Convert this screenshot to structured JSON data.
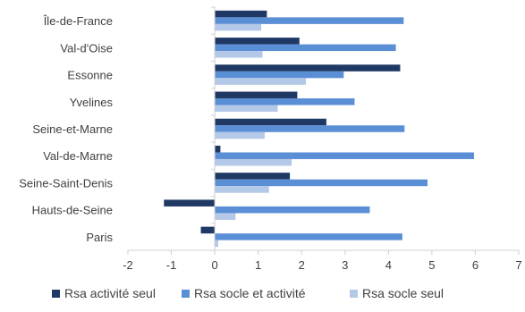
{
  "chart_data": {
    "type": "bar",
    "orientation": "horizontal",
    "title": "",
    "xlabel": "",
    "ylabel": "",
    "categories": [
      "Île-de-France",
      "Val-d'Oise",
      "Essonne",
      "Yvelines",
      "Seine-et-Marne",
      "Val-de-Marne",
      "Seine-Saint-Denis",
      "Hauts-de-Seine",
      "Paris"
    ],
    "series": [
      {
        "name": "Rsa activité seul",
        "color": "#1f3864",
        "values": [
          1.2,
          1.95,
          4.27,
          1.9,
          2.57,
          0.13,
          1.73,
          -1.17,
          -0.32
        ]
      },
      {
        "name": "Rsa socle et activité",
        "color": "#5b8fd5",
        "values": [
          4.35,
          4.17,
          2.97,
          3.22,
          4.37,
          5.97,
          4.9,
          3.57,
          4.32
        ]
      },
      {
        "name": "Rsa socle seul",
        "color": "#b4c8e8",
        "values": [
          1.07,
          1.1,
          2.1,
          1.45,
          1.15,
          1.77,
          1.25,
          0.48,
          0.08
        ]
      }
    ],
    "xlim": [
      -2,
      7
    ],
    "xticks": [
      "-2",
      "-1",
      "0",
      "1",
      "2",
      "3",
      "4",
      "5",
      "6",
      "7"
    ],
    "grid": false,
    "legend_position": "bottom"
  }
}
